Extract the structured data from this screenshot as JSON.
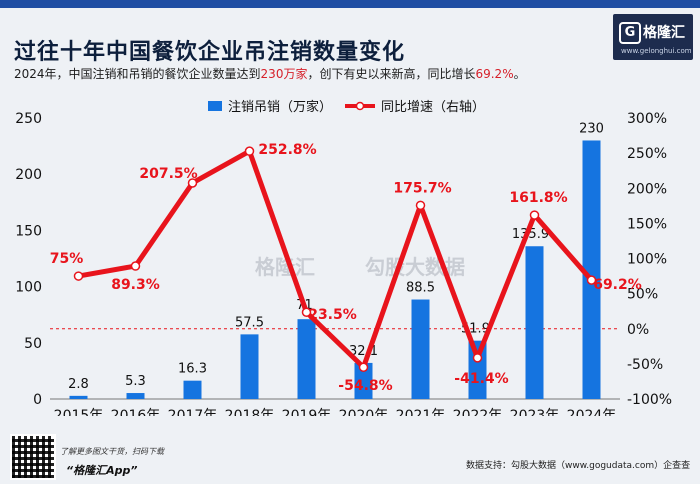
{
  "header": {
    "title": "过往十年中国餐饮企业吊注销数量变化",
    "subtitle_prefix": "2024年，中国注销和吊销的餐饮企业数量达到",
    "subtitle_highlight1": "230万家",
    "subtitle_middle": "，创下有史以来新高，同比增长",
    "subtitle_highlight2": "69.2%",
    "subtitle_suffix": "。"
  },
  "logo": {
    "mark": "G",
    "name": "格隆汇",
    "url": "www.gelonghui.com"
  },
  "watermark": {
    "brand": "格隆汇",
    "partner": "勾股大数据"
  },
  "footer": {
    "small": "了解更多图文干货，扫码下载",
    "app": "“格隆汇App”",
    "source": "数据支持：勾股大数据（www.gogudata.com）企查查"
  },
  "colors": {
    "bar": "#1574e0",
    "line": "#e8141c",
    "label_red": "#e8141c",
    "dash": "#e8141c"
  },
  "chart_data": {
    "type": "bar",
    "categories": [
      "2015年",
      "2016年",
      "2017年",
      "2018年",
      "2019年",
      "2020年",
      "2021年",
      "2022年",
      "2023年",
      "2024年"
    ],
    "series": [
      {
        "name": "注销吊销（万家）",
        "type": "bar",
        "axis": "left",
        "values": [
          2.8,
          5.3,
          16.3,
          57.5,
          71,
          32.1,
          88.5,
          51.9,
          135.9,
          230
        ],
        "labels": [
          "2.8",
          "5.3",
          "16.3",
          "57.5",
          "71",
          "32.1",
          "88.5",
          "51.9",
          "135.9",
          "230"
        ]
      },
      {
        "name": "同比增速（右轴）",
        "type": "line",
        "axis": "right",
        "values": [
          75,
          89.3,
          207.5,
          252.8,
          23.5,
          -54.8,
          175.7,
          -41.4,
          161.8,
          69.2
        ],
        "labels": [
          "75%",
          "89.3%",
          "207.5%",
          "252.8%",
          "23.5%",
          "-54.8%",
          "175.7%",
          "-41.4%",
          "161.8%",
          "69.2%"
        ]
      }
    ],
    "left_axis": {
      "min": 0,
      "max": 250,
      "ticks": [
        0,
        50,
        100,
        150,
        200,
        250
      ],
      "tick_labels": [
        "0",
        "50",
        "100",
        "150",
        "200",
        "250"
      ]
    },
    "right_axis": {
      "min": -100,
      "max": 300,
      "ticks": [
        -100,
        -50,
        0,
        50,
        100,
        150,
        200,
        250,
        300
      ],
      "tick_labels": [
        "-100%",
        "-50%",
        "0%",
        "50%",
        "100%",
        "150%",
        "200%",
        "250%",
        "300%"
      ]
    },
    "legend_position": "top-center",
    "reference_line": {
      "axis": "right",
      "value": 0,
      "style": "dashed"
    },
    "grid": false
  }
}
